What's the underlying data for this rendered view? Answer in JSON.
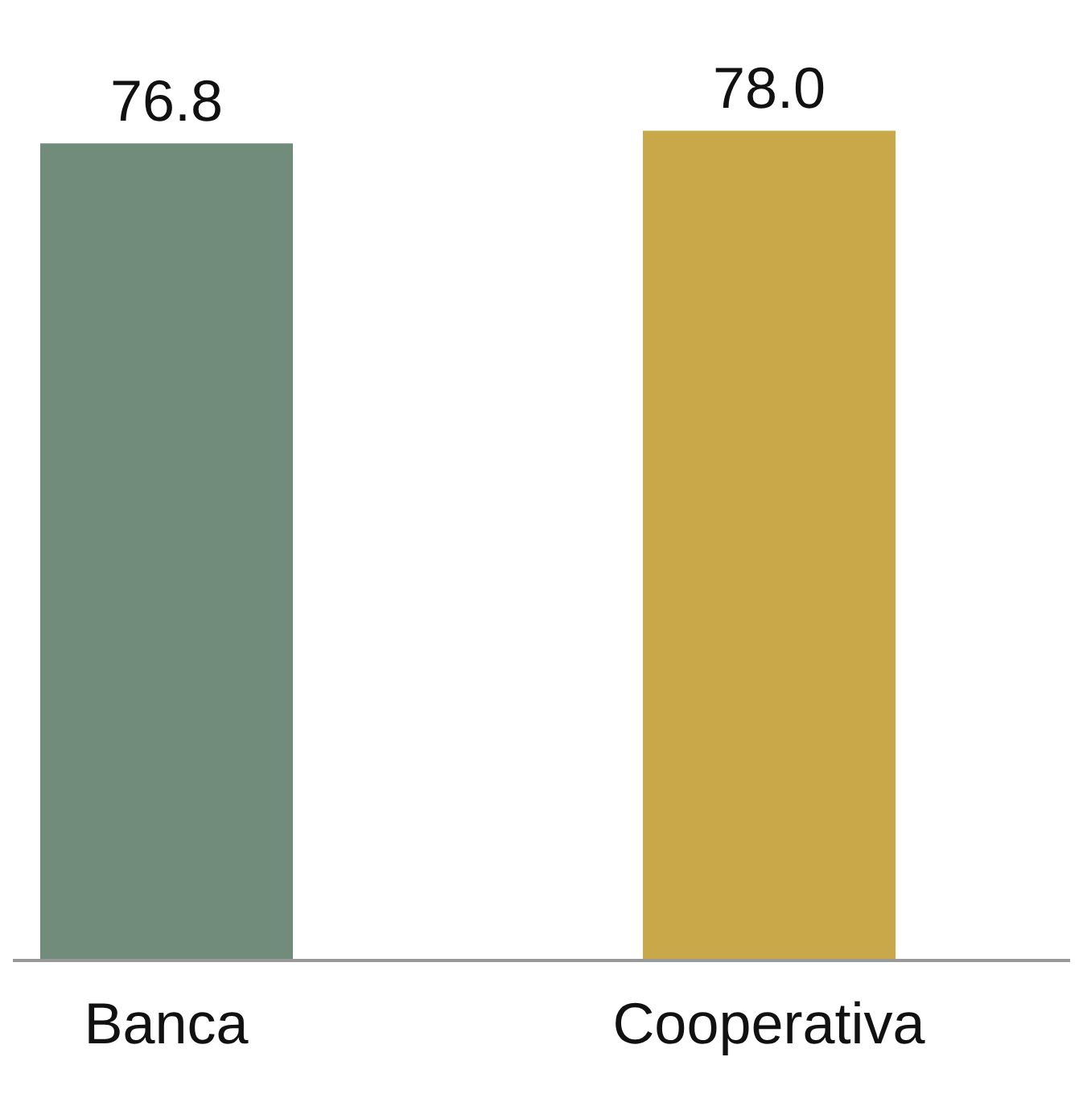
{
  "chart_data": {
    "type": "bar",
    "categories": [
      "Banca",
      "Cooperativa"
    ],
    "values": [
      76.8,
      78.0
    ],
    "value_labels": [
      "76.8",
      "78.0"
    ],
    "colors": [
      "#728c7c",
      "#c9a84a"
    ],
    "tick_labels": "x",
    "grid": false,
    "legend": false
  }
}
